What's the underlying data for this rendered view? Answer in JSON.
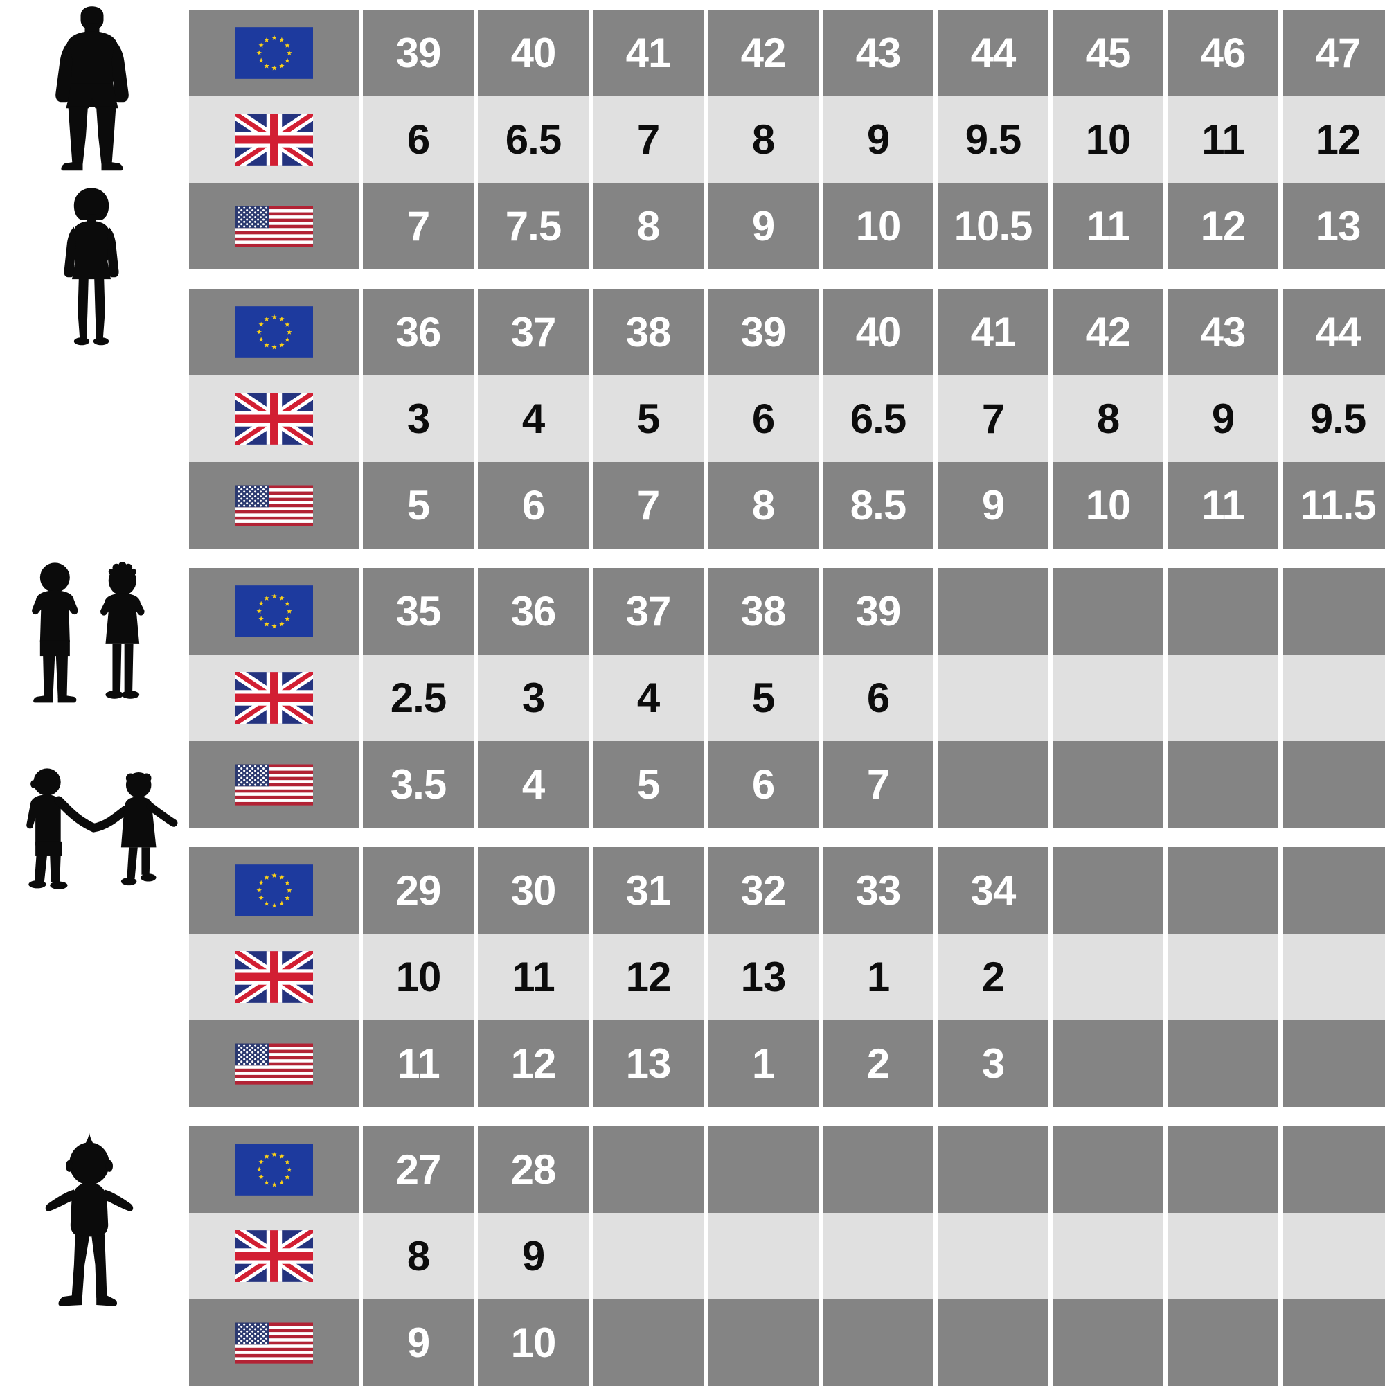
{
  "title": "Shoe size conversion chart (EU / UK / US) for men, women, children and toddlers",
  "colors": {
    "row_dark": "#848484",
    "row_light": "#e0e0e0",
    "text_on_dark": "#ffffff",
    "text_on_light": "#0c0c0c",
    "silhouette": "#0b0b0b",
    "eu_blue": "#1d3a9e",
    "eu_star_yellow": "#fdd216",
    "uk_blue": "#24337f",
    "uk_red": "#d21f33",
    "us_red": "#b22234",
    "us_blue": "#2c3a70"
  },
  "icons": {
    "eu": "eu-flag-icon",
    "uk": "uk-flag-icon",
    "us": "us-flag-icon",
    "silhouettes": [
      "man-silhouette",
      "woman-silhouette",
      "boy-and-girl-silhouette",
      "children-holding-hands-silhouette",
      "toddler-silhouette"
    ]
  },
  "sections": [
    {
      "group": "men",
      "silhouette": "man-silhouette",
      "rows": [
        {
          "flag": "eu",
          "shade": "dark",
          "values": [
            "39",
            "40",
            "41",
            "42",
            "43",
            "44",
            "45",
            "46",
            "47"
          ]
        },
        {
          "flag": "uk",
          "shade": "light",
          "values": [
            "6",
            "6.5",
            "7",
            "8",
            "9",
            "9.5",
            "10",
            "11",
            "12"
          ]
        },
        {
          "flag": "us",
          "shade": "dark",
          "values": [
            "7",
            "7.5",
            "8",
            "9",
            "10",
            "10.5",
            "11",
            "12",
            "13"
          ]
        }
      ]
    },
    {
      "group": "women",
      "silhouette": "woman-silhouette",
      "rows": [
        {
          "flag": "eu",
          "shade": "dark",
          "values": [
            "36",
            "37",
            "38",
            "39",
            "40",
            "41",
            "42",
            "43",
            "44"
          ]
        },
        {
          "flag": "uk",
          "shade": "light",
          "values": [
            "3",
            "4",
            "5",
            "6",
            "6.5",
            "7",
            "8",
            "9",
            "9.5"
          ]
        },
        {
          "flag": "us",
          "shade": "dark",
          "values": [
            "5",
            "6",
            "7",
            "8",
            "8.5",
            "9",
            "10",
            "11",
            "11.5"
          ]
        }
      ]
    },
    {
      "group": "older-children",
      "silhouette": "boy-and-girl-silhouette",
      "rows": [
        {
          "flag": "eu",
          "shade": "dark",
          "values": [
            "35",
            "36",
            "37",
            "38",
            "39",
            "",
            "",
            "",
            ""
          ]
        },
        {
          "flag": "uk",
          "shade": "light",
          "values": [
            "2.5",
            "3",
            "4",
            "5",
            "6",
            "",
            "",
            "",
            ""
          ]
        },
        {
          "flag": "us",
          "shade": "dark",
          "values": [
            "3.5",
            "4",
            "5",
            "6",
            "7",
            "",
            "",
            "",
            ""
          ]
        }
      ]
    },
    {
      "group": "younger-children",
      "silhouette": "children-holding-hands-silhouette",
      "rows": [
        {
          "flag": "eu",
          "shade": "dark",
          "values": [
            "29",
            "30",
            "31",
            "32",
            "33",
            "34",
            "",
            "",
            ""
          ]
        },
        {
          "flag": "uk",
          "shade": "light",
          "values": [
            "10",
            "11",
            "12",
            "13",
            "1",
            "2",
            "",
            "",
            ""
          ]
        },
        {
          "flag": "us",
          "shade": "dark",
          "values": [
            "11",
            "12",
            "13",
            "1",
            "2",
            "3",
            "",
            "",
            ""
          ]
        }
      ]
    },
    {
      "group": "toddlers",
      "silhouette": "toddler-silhouette",
      "rows": [
        {
          "flag": "eu",
          "shade": "dark",
          "values": [
            "27",
            "28",
            "",
            "",
            "",
            "",
            "",
            "",
            ""
          ]
        },
        {
          "flag": "uk",
          "shade": "light",
          "values": [
            "8",
            "9",
            "",
            "",
            "",
            "",
            "",
            "",
            ""
          ]
        },
        {
          "flag": "us",
          "shade": "dark",
          "values": [
            "9",
            "10",
            "",
            "",
            "",
            "",
            "",
            "",
            ""
          ]
        }
      ]
    }
  ],
  "chart_data": {
    "type": "table",
    "title": "Shoe size conversion chart (EU / UK / US)",
    "row_labels": [
      "EU",
      "UK",
      "US"
    ],
    "groups": [
      {
        "name": "men",
        "eu": [
          39,
          40,
          41,
          42,
          43,
          44,
          45,
          46,
          47
        ],
        "uk": [
          6,
          6.5,
          7,
          8,
          9,
          9.5,
          10,
          11,
          12
        ],
        "us": [
          7,
          7.5,
          8,
          9,
          10,
          10.5,
          11,
          12,
          13
        ]
      },
      {
        "name": "women",
        "eu": [
          36,
          37,
          38,
          39,
          40,
          41,
          42,
          43,
          44
        ],
        "uk": [
          3,
          4,
          5,
          6,
          6.5,
          7,
          8,
          9,
          9.5
        ],
        "us": [
          5,
          6,
          7,
          8,
          8.5,
          9,
          10,
          11,
          11.5
        ]
      },
      {
        "name": "older-children",
        "eu": [
          35,
          36,
          37,
          38,
          39
        ],
        "uk": [
          2.5,
          3,
          4,
          5,
          6
        ],
        "us": [
          3.5,
          4,
          5,
          6,
          7
        ]
      },
      {
        "name": "younger-children",
        "eu": [
          29,
          30,
          31,
          32,
          33,
          34
        ],
        "uk": [
          10,
          11,
          12,
          13,
          1,
          2
        ],
        "us": [
          11,
          12,
          13,
          1,
          2,
          3
        ]
      },
      {
        "name": "toddlers",
        "eu": [
          27,
          28
        ],
        "uk": [
          8,
          9
        ],
        "us": [
          9,
          10
        ]
      }
    ]
  }
}
